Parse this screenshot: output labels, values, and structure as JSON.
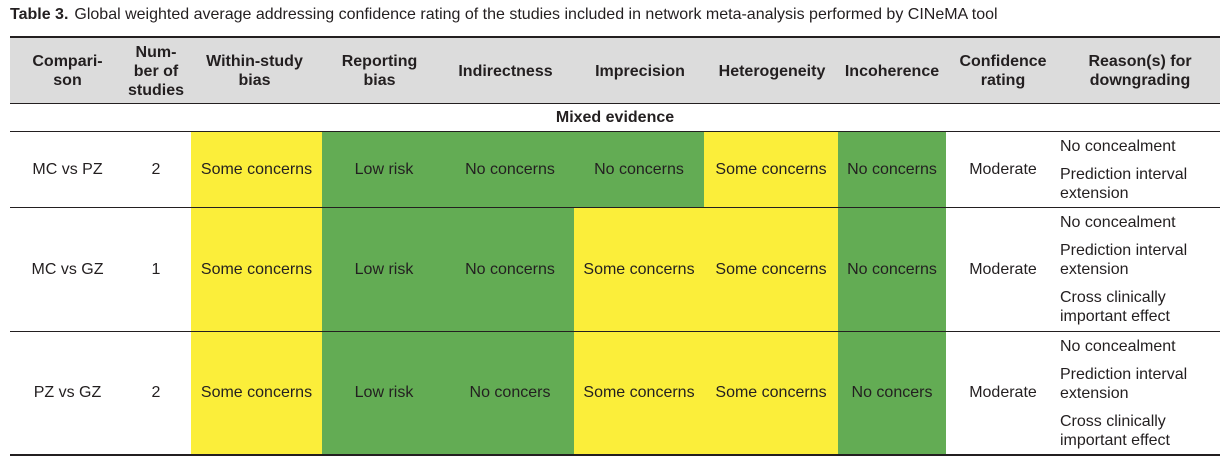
{
  "caption": {
    "label": "Table 3.",
    "text": "Global weighted average addressing confidence rating of the studies included in network meta-analysis performed by CINeMA tool"
  },
  "headers": {
    "comparison": "Compari-\nson",
    "studies": "Num-\nber of\nstudies",
    "within": "Within-study\nbias",
    "reporting": "Reporting\nbias",
    "indirectness": "Indirectness",
    "imprecision": "Imprecision",
    "heterogeneity": "Heterogeneity",
    "incoherence": "Incoherence",
    "confidence": "Confidence\nrating",
    "reasons": "Reason(s) for\ndowngrading"
  },
  "section": "Mixed evidence",
  "colors": {
    "yellow": "#fbee3a",
    "green": "#63ac54",
    "header_bg": "#dcdcdc"
  },
  "rows": [
    {
      "comparison": "MC vs PZ",
      "studies": "2",
      "within": "Some concerns",
      "reporting": "Low risk",
      "indirectness": "No concerns",
      "imprecision": "No concerns",
      "heterogeneity": "Some concerns",
      "incoherence": "No concerns",
      "confidence": "Moderate",
      "reasons": [
        "No concealment",
        "Prediction interval\nextension"
      ]
    },
    {
      "comparison": "MC vs GZ",
      "studies": "1",
      "within": "Some concerns",
      "reporting": "Low risk",
      "indirectness": "No concerns",
      "imprecision": "Some concerns",
      "heterogeneity": "Some concerns",
      "incoherence": "No concerns",
      "confidence": "Moderate",
      "reasons": [
        "No concealment",
        "Prediction interval\nextension",
        "Cross clinically\nimportant effect"
      ]
    },
    {
      "comparison": "PZ vs GZ",
      "studies": "2",
      "within": "Some concerns",
      "reporting": "Low risk",
      "indirectness": "No concers",
      "imprecision": "Some concerns",
      "heterogeneity": "Some concerns",
      "incoherence": "No concers",
      "confidence": "Moderate",
      "reasons": [
        "No concealment",
        "Prediction interval\nextension",
        "Cross clinically\nimportant effect"
      ]
    }
  ]
}
